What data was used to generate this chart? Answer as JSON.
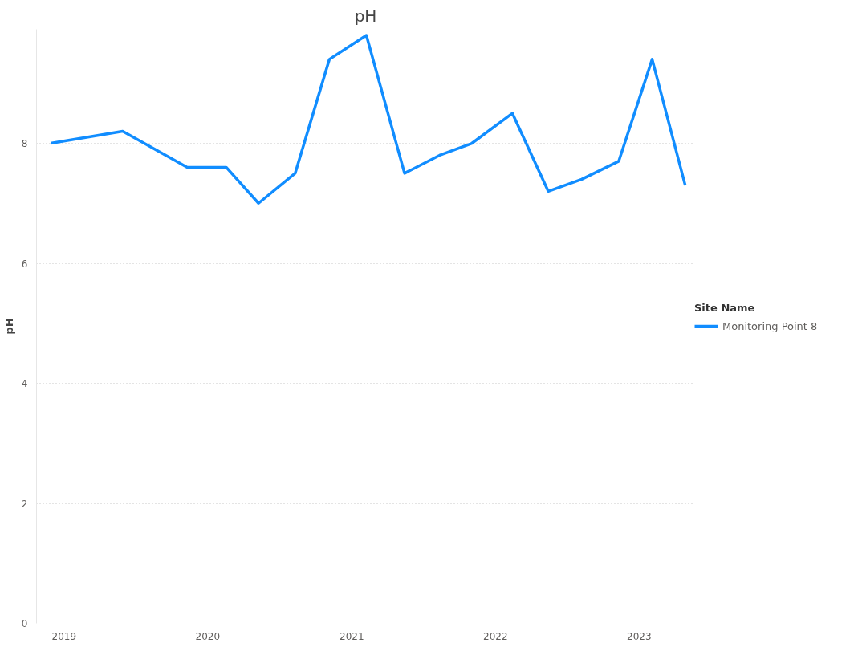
{
  "chart_data": {
    "type": "line",
    "title": "pH",
    "ylabel": "pH",
    "legend_title": "Site Name",
    "x": [
      "2018-11-28",
      "2019-05-30",
      "2019-11-10",
      "2020-02-17",
      "2020-05-09",
      "2020-08-10",
      "2020-11-05",
      "2021-02-07",
      "2021-05-15",
      "2021-08-12",
      "2021-11-02",
      "2022-02-13",
      "2022-05-15",
      "2022-08-08",
      "2022-11-10",
      "2023-02-03",
      "2023-04-28"
    ],
    "series": [
      {
        "name": "Monitoring Point 8",
        "color": "#118dff",
        "values": [
          8.0,
          8.2,
          7.6,
          7.6,
          7.0,
          7.5,
          9.4,
          9.8,
          7.5,
          7.8,
          8.0,
          8.5,
          7.2,
          7.4,
          7.7,
          9.4,
          7.3
        ]
      }
    ],
    "xlim": [
      "2018-10-23",
      "2023-05-22"
    ],
    "xticks": [
      "2019",
      "2020",
      "2021",
      "2022",
      "2023"
    ],
    "ylim": [
      0,
      9.9
    ],
    "yticks": [
      0,
      2,
      4,
      6,
      8
    ],
    "grid": "y",
    "legend": "right",
    "marker": "none",
    "line_style": "solid"
  }
}
